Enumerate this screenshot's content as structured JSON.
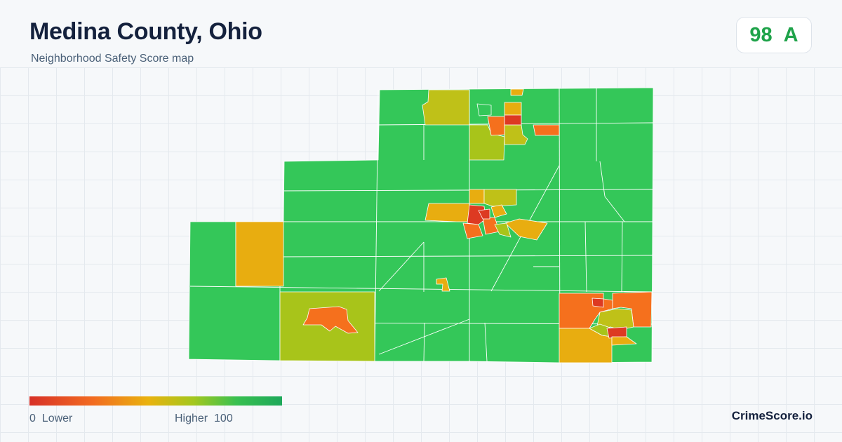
{
  "header": {
    "title": "Medina County, Ohio",
    "subtitle": "Neighborhood Safety Score map"
  },
  "score": {
    "value": "98",
    "grade": "A",
    "color": "#1fa34a"
  },
  "legend": {
    "min": "0",
    "min_label": "Lower",
    "max_label": "Higher",
    "max": "100",
    "colors": [
      "#d73027",
      "#f26b21",
      "#e9b20e",
      "#a3c71e",
      "#38c050",
      "#1ea85a"
    ]
  },
  "brand": {
    "name": "CrimeScore.io"
  },
  "map_colors": {
    "safe": "#34c759",
    "moderate_high": "#a8c41a",
    "olive": "#bfc118",
    "moderate": "#e8ad10",
    "low": "#f5701d",
    "lowest": "#dd3a22"
  }
}
